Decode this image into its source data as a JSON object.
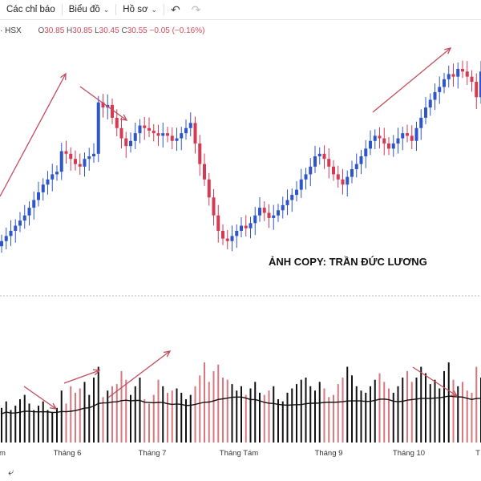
{
  "toolbar": {
    "indicators_label": "Các chỉ báo",
    "chart_label": "Biểu đồ",
    "profile_label": "Hồ sơ"
  },
  "ohlc": {
    "symbol": "· HSX",
    "open_label": "O",
    "open": "30.85",
    "high_label": "H",
    "high": "30.85",
    "low_label": "L",
    "low": "30.45",
    "close_label": "C",
    "close": "30.55",
    "change": "−0.05 (−0.16%)"
  },
  "watermark": "ẢNH COPY: TRẦN ĐỨC LƯƠNG",
  "colors": {
    "up": "#2e55c9",
    "down": "#d43b52",
    "annotation": "#c24b5d",
    "vol_up": "#111111",
    "vol_down": "#d9777f"
  },
  "chart_data": {
    "type": "candlestick",
    "x_axis_labels": [
      "m",
      "Tháng 6",
      "Tháng 7",
      "Tháng Tám",
      "Tháng 9",
      "Tháng 10",
      "T"
    ],
    "volume_line": "moving average of volume (black line)",
    "price_sequence": [
      30.6,
      30.8,
      31.0,
      31.2,
      31.4,
      31.6,
      31.9,
      32.2,
      32.5,
      32.8,
      33.0,
      33.2,
      33.3,
      34.1,
      34.0,
      33.8,
      33.6,
      33.5,
      33.8,
      33.9,
      34.0,
      36.0,
      35.8,
      35.9,
      35.4,
      35.0,
      34.6,
      34.3,
      34.5,
      34.8,
      35.1,
      35.0,
      34.9,
      34.8,
      34.7,
      34.8,
      34.7,
      34.5,
      34.6,
      34.8,
      35.0,
      35.2,
      34.4,
      33.6,
      33.0,
      32.3,
      31.6,
      31.0,
      30.7,
      30.6,
      30.8,
      31.0,
      31.2,
      31.1,
      31.3,
      31.6,
      31.9,
      31.7,
      31.5,
      31.6,
      31.8,
      32.0,
      32.2,
      32.4,
      32.6,
      33.0,
      33.2,
      33.5,
      33.9,
      34.0,
      33.8,
      33.5,
      33.2,
      33.0,
      32.8,
      33.1,
      33.4,
      33.6,
      33.9,
      34.2,
      34.5,
      34.7,
      34.6,
      34.4,
      34.2,
      34.4,
      34.6,
      34.8,
      34.7,
      34.5,
      35.0,
      35.4,
      35.8,
      36.1,
      36.4,
      36.6,
      36.9,
      37.1,
      37.0,
      37.3,
      37.2,
      37.0,
      36.8,
      36.2,
      37.2
    ],
    "volume_sequence": [
      32,
      38,
      30,
      34,
      40,
      44,
      36,
      30,
      34,
      38,
      30,
      28,
      32,
      48,
      36,
      52,
      46,
      50,
      56,
      44,
      60,
      70,
      42,
      48,
      52,
      54,
      66,
      58,
      44,
      52,
      60,
      40,
      36,
      44,
      58,
      52,
      46,
      48,
      50,
      46,
      40,
      44,
      52,
      62,
      74,
      56,
      66,
      72,
      60,
      58,
      54,
      48,
      52,
      44,
      50,
      56,
      46,
      44,
      48,
      52,
      40,
      38,
      46,
      50,
      54,
      58,
      60,
      52,
      48,
      56,
      50,
      42,
      44,
      54,
      60,
      70,
      62,
      52,
      48,
      46,
      52,
      58,
      64,
      56,
      50,
      46,
      52,
      60,
      66,
      56,
      60,
      70,
      64,
      54,
      58,
      50,
      66,
      74,
      58,
      52,
      56,
      48,
      46,
      70,
      60
    ]
  }
}
